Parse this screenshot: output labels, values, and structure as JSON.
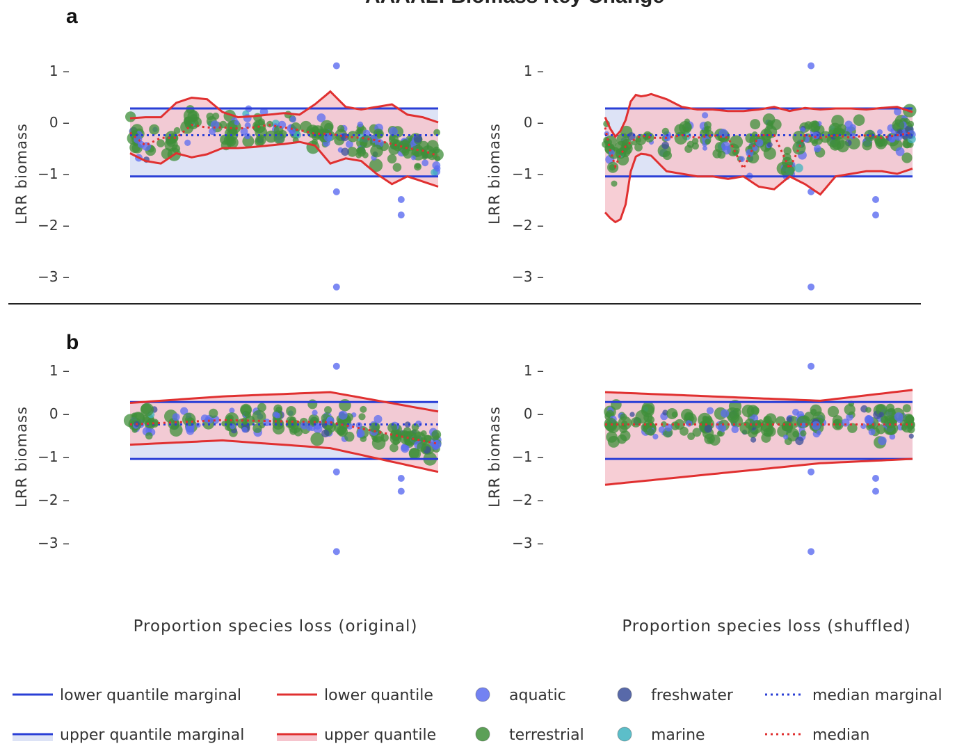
{
  "figure": {
    "title": "AAAAL: Biomass Key Change",
    "panel_letters": [
      "a",
      "b"
    ],
    "x_labels": [
      "Proportion species loss (original)",
      "Proportion species loss (shuffled)"
    ],
    "y_label": "LRR biomass"
  },
  "colors": {
    "aquatic": "#5b6cf0",
    "terrestrial": "#3f8f3a",
    "freshwater": "#3b4f9a",
    "marine": "#3fb3bf",
    "quantile_line": "#e03030",
    "quantile_fill": "#f6c5ce",
    "marginal_line": "#2a3fd6",
    "marginal_fill": "#dde3f6"
  },
  "legend": [
    {
      "label": "lower quantile marginal",
      "kind": "line",
      "color": "#2a3fd6",
      "icon": "solid-line-icon"
    },
    {
      "label": "lower quantile",
      "kind": "line",
      "color": "#e03030",
      "icon": "solid-line-icon"
    },
    {
      "label": "aquatic",
      "kind": "dot",
      "color": "#5b6cf0",
      "icon": "dot-icon"
    },
    {
      "label": "freshwater",
      "kind": "dot",
      "color": "#3b4f9a",
      "icon": "dot-icon"
    },
    {
      "label": "median marginal",
      "kind": "dotted",
      "color": "#2a3fd6",
      "icon": "dotted-line-icon"
    },
    {
      "label": "upper quantile marginal",
      "kind": "line-fill",
      "color": "#2a3fd6",
      "fill": "#dde3f6",
      "icon": "filled-line-icon"
    },
    {
      "label": "upper quantile",
      "kind": "line-fill",
      "color": "#e03030",
      "fill": "#f6c5ce",
      "icon": "filled-line-icon"
    },
    {
      "label": "terrestrial",
      "kind": "dot",
      "color": "#3f8f3a",
      "icon": "dot-icon"
    },
    {
      "label": "marine",
      "kind": "dot",
      "color": "#3fb3bf",
      "icon": "dot-icon"
    },
    {
      "label": "median",
      "kind": "dotted",
      "color": "#e03030",
      "icon": "dotted-line-icon"
    }
  ],
  "chart_data": [
    {
      "id": "a-original",
      "type": "scatter",
      "panel": "a",
      "xlabel": "",
      "ylabel": "LRR biomass",
      "xlim": [
        0,
        1
      ],
      "ylim": [
        -3.4,
        1.3
      ],
      "yticks": [
        1,
        0,
        -1,
        -2,
        -3
      ],
      "ytick_labels": [
        "1",
        "0",
        "−1",
        "−2",
        "−3"
      ],
      "marginal": {
        "lower": -1.05,
        "upper": 0.27,
        "median": -0.25
      },
      "quantile": {
        "x": [
          0,
          0.05,
          0.1,
          0.15,
          0.2,
          0.25,
          0.3,
          0.35,
          0.4,
          0.45,
          0.5,
          0.55,
          0.6,
          0.65,
          0.7,
          0.75,
          0.8,
          0.85,
          0.9,
          0.95,
          1.0
        ],
        "upper": [
          0.08,
          0.1,
          0.1,
          0.38,
          0.48,
          0.45,
          0.2,
          0.1,
          0.12,
          0.15,
          0.18,
          0.15,
          0.35,
          0.6,
          0.3,
          0.25,
          0.3,
          0.35,
          0.15,
          0.1,
          0.0
        ],
        "lower": [
          -0.6,
          -0.75,
          -0.8,
          -0.6,
          -0.68,
          -0.62,
          -0.5,
          -0.5,
          -0.48,
          -0.45,
          -0.42,
          -0.38,
          -0.45,
          -0.8,
          -0.7,
          -0.75,
          -1.0,
          -1.2,
          -1.05,
          -1.15,
          -1.25
        ],
        "median": [
          -0.2,
          -0.45,
          -0.3,
          -0.3,
          -0.05,
          -0.1,
          -0.1,
          -0.12,
          -0.1,
          -0.05,
          -0.1,
          -0.15,
          -0.22,
          -0.22,
          -0.28,
          -0.3,
          -0.35,
          -0.42,
          -0.5,
          -0.55,
          -0.65
        ]
      }
    },
    {
      "id": "a-shuffled",
      "type": "scatter",
      "panel": "a",
      "xlabel": "",
      "ylabel": "LRR biomass",
      "xlim": [
        0,
        1
      ],
      "ylim": [
        -3.4,
        1.3
      ],
      "yticks": [
        1,
        0,
        -1,
        -2,
        -3
      ],
      "ytick_labels": [
        "1",
        "0",
        "−1",
        "−2",
        "−3"
      ],
      "marginal": {
        "lower": -1.05,
        "upper": 0.27,
        "median": -0.25
      },
      "quantile": {
        "x": [
          0,
          0.03,
          0.06,
          0.09,
          0.12,
          0.15,
          0.2,
          0.25,
          0.3,
          0.35,
          0.4,
          0.45,
          0.5,
          0.55,
          0.6,
          0.65,
          0.7,
          0.75,
          0.8,
          0.85,
          0.9,
          0.95,
          1.0
        ],
        "upper": [
          0.1,
          -0.3,
          -0.1,
          0.55,
          0.5,
          0.55,
          0.45,
          0.3,
          0.25,
          0.25,
          0.22,
          0.22,
          0.25,
          0.3,
          0.22,
          0.28,
          0.25,
          0.27,
          0.27,
          0.25,
          0.28,
          0.3,
          0.2
        ],
        "lower": [
          -1.75,
          -1.95,
          -1.85,
          -0.7,
          -0.6,
          -0.65,
          -0.95,
          -1.0,
          -1.05,
          -1.05,
          -1.1,
          -1.05,
          -1.25,
          -1.3,
          -1.05,
          -1.2,
          -1.4,
          -1.05,
          -1.0,
          -0.95,
          -0.95,
          -1.0,
          -0.9
        ],
        "median": [
          -0.1,
          -0.9,
          -0.5,
          -0.35,
          -0.25,
          -0.3,
          -0.3,
          -0.25,
          -0.3,
          -0.25,
          -0.3,
          -0.9,
          -0.25,
          -0.25,
          -0.9,
          -0.25,
          -0.3,
          -0.25,
          -0.3,
          -0.25,
          -0.3,
          -0.25,
          -0.2
        ]
      }
    },
    {
      "id": "b-original",
      "type": "scatter",
      "panel": "b",
      "xlabel": "Proportion species loss (original)",
      "ylabel": "LRR biomass",
      "xlim": [
        0,
        1
      ],
      "ylim": [
        -3.4,
        1.3
      ],
      "yticks": [
        1,
        0,
        -1,
        -2,
        -3
      ],
      "ytick_labels": [
        "1",
        "0",
        "−1",
        "−2",
        "−3"
      ],
      "marginal": {
        "lower": -1.05,
        "upper": 0.27,
        "median": -0.25
      },
      "quantile": {
        "x": [
          0,
          0.3,
          0.65,
          1.0
        ],
        "upper": [
          0.25,
          0.4,
          0.5,
          0.05
        ],
        "lower": [
          -0.72,
          -0.62,
          -0.8,
          -1.35
        ],
        "median": [
          -0.25,
          -0.15,
          -0.2,
          -0.7
        ]
      }
    },
    {
      "id": "b-shuffled",
      "type": "scatter",
      "panel": "b",
      "xlabel": "Proportion species loss (shuffled)",
      "ylabel": "LRR biomass",
      "xlim": [
        0,
        1
      ],
      "ylim": [
        -3.4,
        1.3
      ],
      "yticks": [
        1,
        0,
        -1,
        -2,
        -3
      ],
      "ytick_labels": [
        "1",
        "0",
        "−1",
        "−2",
        "−3"
      ],
      "marginal": {
        "lower": -1.05,
        "upper": 0.27,
        "median": -0.25
      },
      "quantile": {
        "x": [
          0,
          0.7,
          1.0
        ],
        "upper": [
          0.5,
          0.3,
          0.55
        ],
        "lower": [
          -1.65,
          -1.15,
          -1.05
        ],
        "median": [
          -0.25,
          -0.25,
          -0.25
        ]
      }
    }
  ]
}
